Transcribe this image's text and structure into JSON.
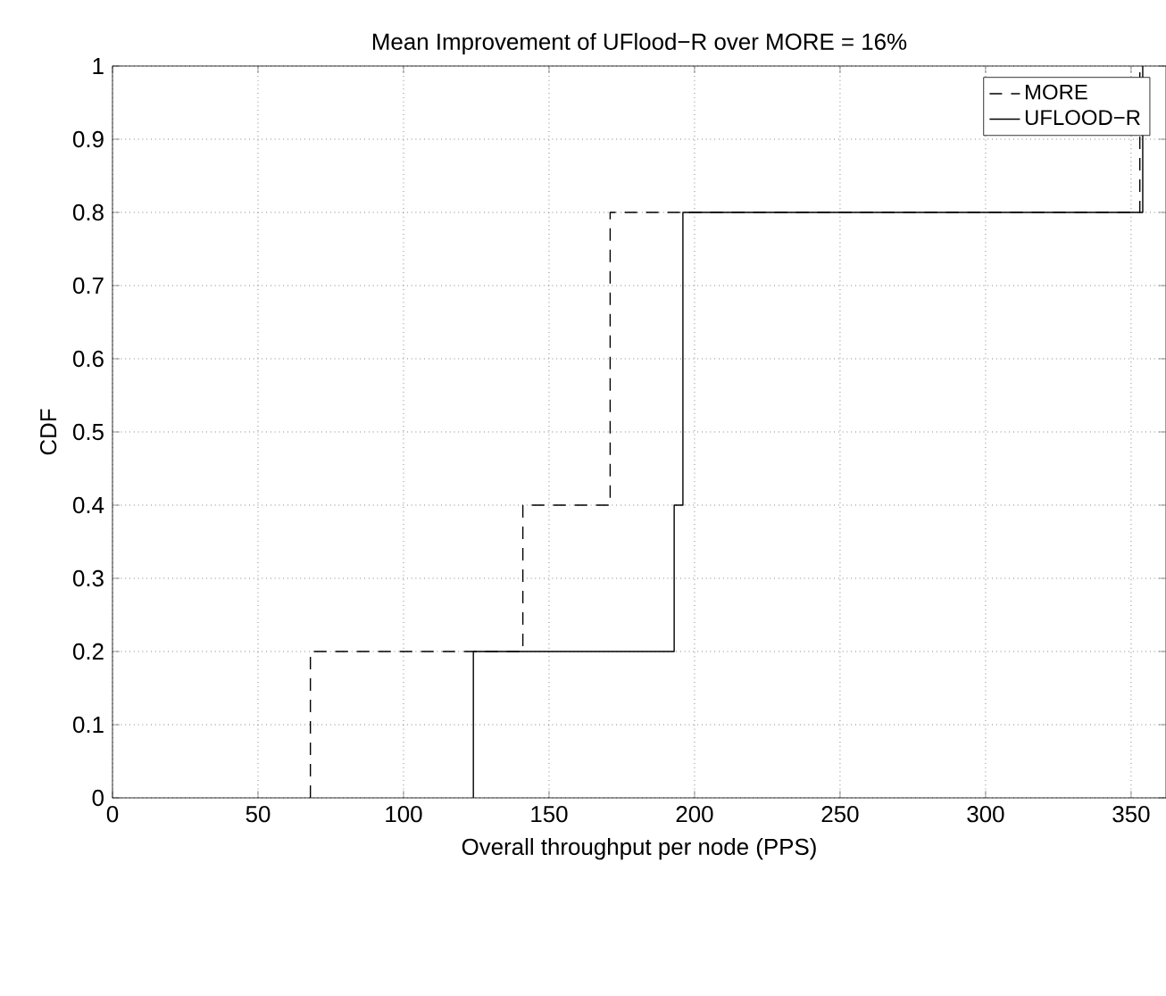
{
  "chart_data": {
    "type": "step",
    "title": "Mean Improvement of UFlood−R over MORE = 16%",
    "xlabel": "Overall throughput per node (PPS)",
    "ylabel": "CDF",
    "xlim": [
      0,
      362
    ],
    "ylim": [
      0,
      1
    ],
    "xticks": [
      0,
      50,
      100,
      150,
      200,
      250,
      300,
      350
    ],
    "yticks": [
      0,
      0.1,
      0.2,
      0.3,
      0.4,
      0.5,
      0.6,
      0.7,
      0.8,
      0.9,
      1
    ],
    "grid": true,
    "legend": "top right",
    "series": [
      {
        "name": "MORE",
        "color": "#000000",
        "line_style": "dashed",
        "x": [
          68,
          68,
          141,
          171,
          353
        ],
        "values": [
          0,
          0.2,
          0.4,
          0.8,
          1
        ]
      },
      {
        "name": "UFLOOD−R",
        "color": "#000000",
        "line_style": "solid",
        "x": [
          124,
          124,
          193,
          196,
          354
        ],
        "values": [
          0,
          0.2,
          0.4,
          0.8,
          1
        ]
      }
    ]
  }
}
